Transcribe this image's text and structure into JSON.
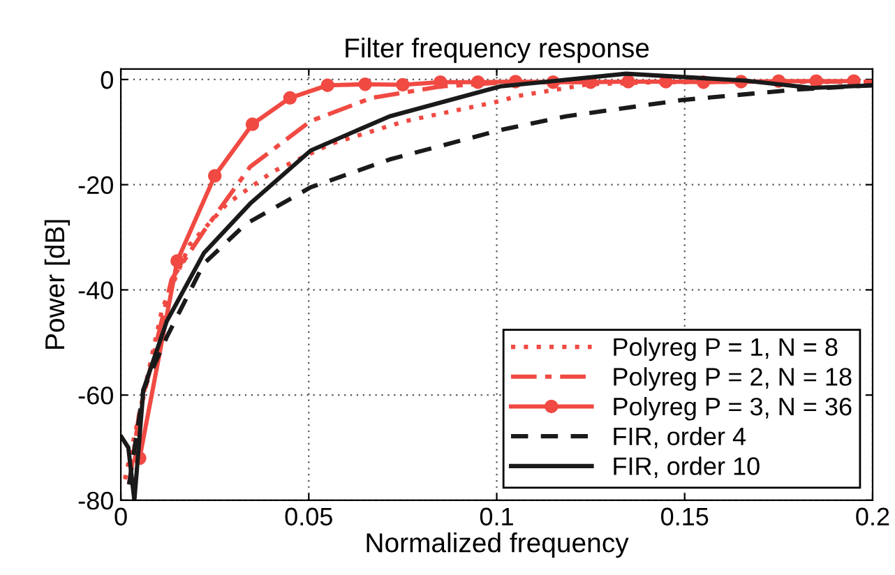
{
  "chart_data": {
    "type": "line",
    "title": "Filter frequency response",
    "xlabel": "Normalized frequency",
    "ylabel": "Power [dB]",
    "xlim": [
      0,
      0.2
    ],
    "ylim": [
      -80,
      2
    ],
    "xticks": [
      0,
      0.05,
      0.1,
      0.15,
      0.2
    ],
    "yticks": [
      -80,
      -60,
      -40,
      -20,
      0
    ],
    "grid": true,
    "legend": "bottom right",
    "series": [
      {
        "name": "Polyreg P = 1, N = 8",
        "color": "#f04a43",
        "line_style": "dotted",
        "marker": "none",
        "x": [
          0.0011,
          0.006,
          0.011,
          0.0183,
          0.0283,
          0.0405,
          0.056,
          0.0757,
          0.0991,
          0.1059,
          0.1245,
          0.143,
          0.17,
          0.2
        ],
        "values": [
          -76,
          -60,
          -43.6,
          -31.4,
          -23.6,
          -17.5,
          -12.2,
          -7.9,
          -4.4,
          -3.1,
          -0.9,
          -0.5,
          -0.4,
          -0.5
        ]
      },
      {
        "name": "Polyreg P = 2, N = 18",
        "color": "#f04a43",
        "line_style": "dashdot",
        "marker": "none",
        "x": [
          0.0022,
          0.0048,
          0.0135,
          0.0221,
          0.0344,
          0.0505,
          0.0667,
          0.0852,
          0.101,
          0.13,
          0.16,
          0.2
        ],
        "values": [
          -77,
          -64,
          -38,
          -28.8,
          -16.6,
          -7.9,
          -3.5,
          -1.3,
          -0.6,
          -0.4,
          -0.4,
          -0.4
        ]
      },
      {
        "name": "Polyreg P = 3, N = 36",
        "color": "#f04a43",
        "line_style": "solid",
        "marker": "circle",
        "x": [
          0.005,
          0.015,
          0.025,
          0.035,
          0.045,
          0.055,
          0.065,
          0.075,
          0.085,
          0.095,
          0.105,
          0.115,
          0.125,
          0.135,
          0.145,
          0.155,
          0.165,
          0.175,
          0.185,
          0.195
        ],
        "values": [
          -72,
          -34.5,
          -18.3,
          -8.5,
          -3.5,
          -1.1,
          -0.9,
          -1,
          -0.5,
          -0.5,
          -0.4,
          -0.5,
          -0.5,
          -0.4,
          -0.4,
          -0.5,
          -0.4,
          -0.3,
          -0.3,
          -0.3
        ]
      },
      {
        "name": "FIR, order 4",
        "color": "#1a1a1a",
        "line_style": "dashed",
        "marker": "none",
        "x": [
          0.0022,
          0.006,
          0.0122,
          0.0221,
          0.0332,
          0.0505,
          0.0715,
          0.101,
          0.1184,
          0.1493,
          0.18,
          0.2
        ],
        "values": [
          -77,
          -59,
          -49,
          -35,
          -27.5,
          -20.5,
          -15.2,
          -9.6,
          -7,
          -3.9,
          -1.9,
          -1.1
        ]
      },
      {
        "name": "FIR, order 10",
        "color": "#1a1a1a",
        "line_style": "solid",
        "marker": "none",
        "x": [
          0.0002,
          0.002,
          0.0036,
          0.006,
          0.0122,
          0.0221,
          0.0344,
          0.0505,
          0.0715,
          0.101,
          0.1344,
          0.166,
          0.184,
          0.2
        ],
        "values": [
          -68,
          -70,
          -80,
          -59,
          -46,
          -33,
          -23.6,
          -13.5,
          -7,
          -1.3,
          1.1,
          -0.2,
          -1.6,
          -1.1
        ]
      }
    ]
  }
}
